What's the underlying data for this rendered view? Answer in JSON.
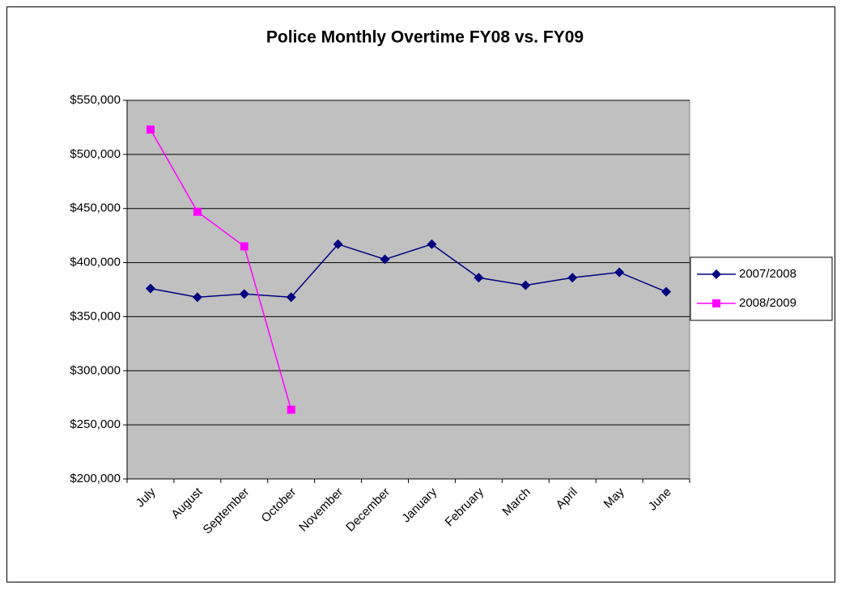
{
  "chart_data": {
    "type": "line",
    "title": "Police Monthly Overtime FY08 vs. FY09",
    "categories": [
      "July",
      "August",
      "September",
      "October",
      "November",
      "December",
      "January",
      "February",
      "March",
      "April",
      "May",
      "June"
    ],
    "series": [
      {
        "name": "2007/2008",
        "color": "#000080",
        "marker": "diamond",
        "values": [
          376000,
          368000,
          371000,
          368000,
          417000,
          403000,
          417000,
          386000,
          379000,
          386000,
          391000,
          373000
        ]
      },
      {
        "name": "2008/2009",
        "color": "#ff00ff",
        "marker": "square",
        "values": [
          523000,
          447000,
          415000,
          264000,
          null,
          null,
          null,
          null,
          null,
          null,
          null,
          null
        ]
      }
    ],
    "ylim": [
      200000,
      550000
    ],
    "yticks": [
      {
        "value": 200000,
        "label": "$200,000"
      },
      {
        "value": 250000,
        "label": "$250,000"
      },
      {
        "value": 300000,
        "label": "$300,000"
      },
      {
        "value": 350000,
        "label": "$350,000"
      },
      {
        "value": 400000,
        "label": "$400,000"
      },
      {
        "value": 450000,
        "label": "$450,000"
      },
      {
        "value": 500000,
        "label": "$500,000"
      },
      {
        "value": 550000,
        "label": "$550,000"
      }
    ],
    "grid": true,
    "legend": "right",
    "plot_background": "#c0c0c0"
  }
}
